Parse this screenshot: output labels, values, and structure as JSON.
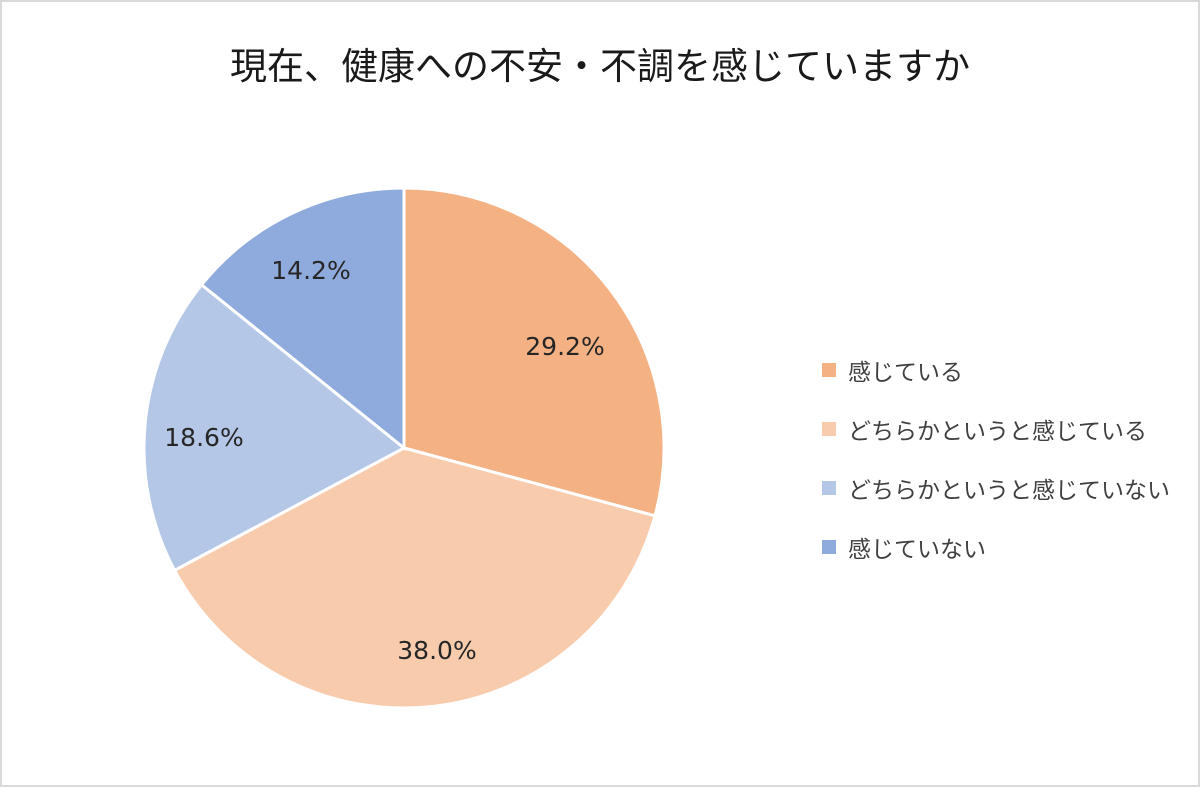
{
  "title": "現在、健康への不安・不調を感じていますか",
  "legend": [
    {
      "label": "感じている",
      "color": "#F4B183"
    },
    {
      "label": "どちらかというと感じている",
      "color": "#F8CBAD"
    },
    {
      "label": "どちらかというと感じていない",
      "color": "#B4C7E7"
    },
    {
      "label": "感じていない",
      "color": "#8FAADC"
    }
  ],
  "chart_data": {
    "type": "pie",
    "title": "現在、健康への不安・不調を感じていますか",
    "categories": [
      "感じている",
      "どちらかというと感じている",
      "どちらかというと感じていない",
      "感じていない"
    ],
    "values": [
      29.2,
      38.0,
      18.6,
      14.2
    ],
    "labels": [
      "29.2%",
      "38.0%",
      "18.6%",
      "14.2%"
    ],
    "colors": [
      "#F4B183",
      "#F8CBAD",
      "#B4C7E7",
      "#8FAADC"
    ],
    "start_angle": "12 o'clock, clockwise",
    "legend_position": "right"
  }
}
